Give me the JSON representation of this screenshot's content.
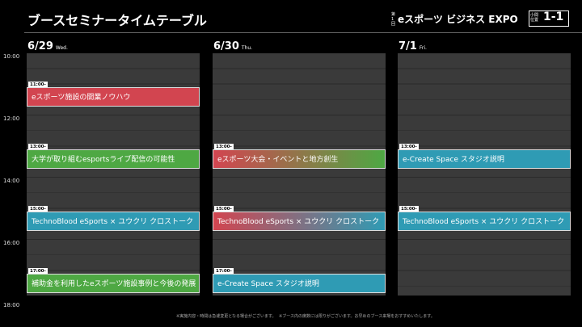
{
  "header": {
    "title": "ブースセミナータイムテーブル",
    "edition": "第1回",
    "event": "eスポーツ ビジネス EXPO",
    "booth_label": "小間位置",
    "booth": "1-1"
  },
  "times": [
    "10:00",
    "12:00",
    "14:00",
    "16:00",
    "18:00"
  ],
  "days": [
    {
      "date": "6/29",
      "weekday": "Wed.",
      "sessions": [
        {
          "time": "11:00-",
          "title": "eスポーツ施設の開業ノウハウ"
        },
        {
          "time": "13:00-",
          "title": "大学が取り組むesportsライブ配信の可能性"
        },
        {
          "time": "15:00-",
          "title": "TechnoBlood eSports × ユウクリ クロストーク"
        },
        {
          "time": "17:00-",
          "title": "補助金を利用したeスポーツ施設事例と今後の発展"
        }
      ]
    },
    {
      "date": "6/30",
      "weekday": "Thu.",
      "sessions": [
        {
          "time": "13:00-",
          "title": "eスポーツ大会・イベントと地方創生"
        },
        {
          "time": "15:00-",
          "title": "TechnoBlood eSports × ユウクリ クロストーク"
        },
        {
          "time": "17:00-",
          "title": "e-Create Space スタジオ説明"
        }
      ]
    },
    {
      "date": "7/1",
      "weekday": "Fri.",
      "sessions": [
        {
          "time": "13:00-",
          "title": "e-Create Space スタジオ説明"
        },
        {
          "time": "15:00-",
          "title": "TechnoBlood eSports × ユウクリ クロストーク"
        }
      ]
    }
  ],
  "notes": [
    "※実施内容・時間は急遽変更となる場合がございます。",
    "※ブース内の席数には限りがございます。お早めのブース来場をおすすめいたします。"
  ]
}
